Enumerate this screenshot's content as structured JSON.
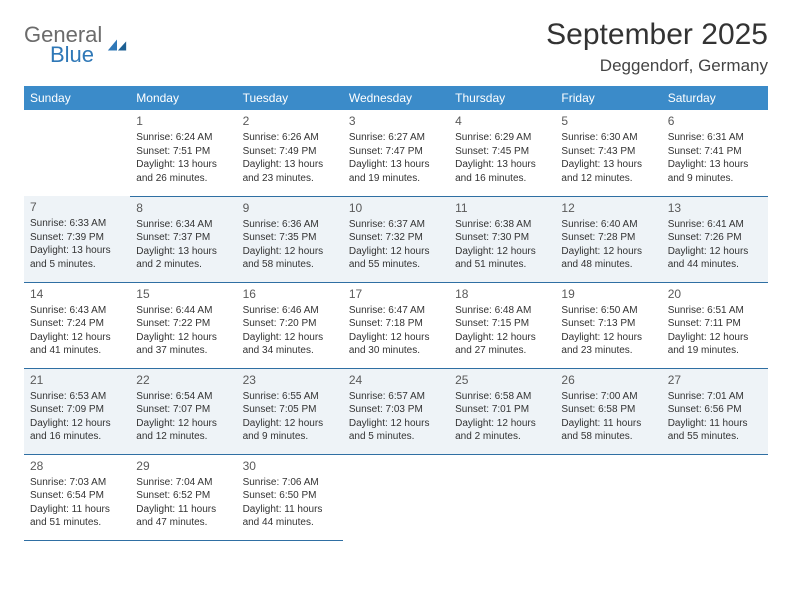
{
  "brand": {
    "text1": "General",
    "text2": "Blue",
    "color1": "#6b6b6b",
    "color2": "#2f78b7"
  },
  "title": "September 2025",
  "location": "Deggendorf, Germany",
  "colors": {
    "header_bg": "#3b8bc9",
    "header_fg": "#ffffff",
    "row_alt_bg": "#eef3f7",
    "row_border": "#2f6fa3",
    "text": "#333333"
  },
  "fonts": {
    "title_size": 30,
    "location_size": 17,
    "dayhead_size": 12,
    "body_size": 10
  },
  "weekdays": [
    "Sunday",
    "Monday",
    "Tuesday",
    "Wednesday",
    "Thursday",
    "Friday",
    "Saturday"
  ],
  "layout": {
    "columns": 7,
    "leading_blanks": 1
  },
  "days": [
    {
      "n": "1",
      "sunrise": "6:24 AM",
      "sunset": "7:51 PM",
      "daylight": "13 hours and 26 minutes."
    },
    {
      "n": "2",
      "sunrise": "6:26 AM",
      "sunset": "7:49 PM",
      "daylight": "13 hours and 23 minutes."
    },
    {
      "n": "3",
      "sunrise": "6:27 AM",
      "sunset": "7:47 PM",
      "daylight": "13 hours and 19 minutes."
    },
    {
      "n": "4",
      "sunrise": "6:29 AM",
      "sunset": "7:45 PM",
      "daylight": "13 hours and 16 minutes."
    },
    {
      "n": "5",
      "sunrise": "6:30 AM",
      "sunset": "7:43 PM",
      "daylight": "13 hours and 12 minutes."
    },
    {
      "n": "6",
      "sunrise": "6:31 AM",
      "sunset": "7:41 PM",
      "daylight": "13 hours and 9 minutes."
    },
    {
      "n": "7",
      "sunrise": "6:33 AM",
      "sunset": "7:39 PM",
      "daylight": "13 hours and 5 minutes."
    },
    {
      "n": "8",
      "sunrise": "6:34 AM",
      "sunset": "7:37 PM",
      "daylight": "13 hours and 2 minutes."
    },
    {
      "n": "9",
      "sunrise": "6:36 AM",
      "sunset": "7:35 PM",
      "daylight": "12 hours and 58 minutes."
    },
    {
      "n": "10",
      "sunrise": "6:37 AM",
      "sunset": "7:32 PM",
      "daylight": "12 hours and 55 minutes."
    },
    {
      "n": "11",
      "sunrise": "6:38 AM",
      "sunset": "7:30 PM",
      "daylight": "12 hours and 51 minutes."
    },
    {
      "n": "12",
      "sunrise": "6:40 AM",
      "sunset": "7:28 PM",
      "daylight": "12 hours and 48 minutes."
    },
    {
      "n": "13",
      "sunrise": "6:41 AM",
      "sunset": "7:26 PM",
      "daylight": "12 hours and 44 minutes."
    },
    {
      "n": "14",
      "sunrise": "6:43 AM",
      "sunset": "7:24 PM",
      "daylight": "12 hours and 41 minutes."
    },
    {
      "n": "15",
      "sunrise": "6:44 AM",
      "sunset": "7:22 PM",
      "daylight": "12 hours and 37 minutes."
    },
    {
      "n": "16",
      "sunrise": "6:46 AM",
      "sunset": "7:20 PM",
      "daylight": "12 hours and 34 minutes."
    },
    {
      "n": "17",
      "sunrise": "6:47 AM",
      "sunset": "7:18 PM",
      "daylight": "12 hours and 30 minutes."
    },
    {
      "n": "18",
      "sunrise": "6:48 AM",
      "sunset": "7:15 PM",
      "daylight": "12 hours and 27 minutes."
    },
    {
      "n": "19",
      "sunrise": "6:50 AM",
      "sunset": "7:13 PM",
      "daylight": "12 hours and 23 minutes."
    },
    {
      "n": "20",
      "sunrise": "6:51 AM",
      "sunset": "7:11 PM",
      "daylight": "12 hours and 19 minutes."
    },
    {
      "n": "21",
      "sunrise": "6:53 AM",
      "sunset": "7:09 PM",
      "daylight": "12 hours and 16 minutes."
    },
    {
      "n": "22",
      "sunrise": "6:54 AM",
      "sunset": "7:07 PM",
      "daylight": "12 hours and 12 minutes."
    },
    {
      "n": "23",
      "sunrise": "6:55 AM",
      "sunset": "7:05 PM",
      "daylight": "12 hours and 9 minutes."
    },
    {
      "n": "24",
      "sunrise": "6:57 AM",
      "sunset": "7:03 PM",
      "daylight": "12 hours and 5 minutes."
    },
    {
      "n": "25",
      "sunrise": "6:58 AM",
      "sunset": "7:01 PM",
      "daylight": "12 hours and 2 minutes."
    },
    {
      "n": "26",
      "sunrise": "7:00 AM",
      "sunset": "6:58 PM",
      "daylight": "11 hours and 58 minutes."
    },
    {
      "n": "27",
      "sunrise": "7:01 AM",
      "sunset": "6:56 PM",
      "daylight": "11 hours and 55 minutes."
    },
    {
      "n": "28",
      "sunrise": "7:03 AM",
      "sunset": "6:54 PM",
      "daylight": "11 hours and 51 minutes."
    },
    {
      "n": "29",
      "sunrise": "7:04 AM",
      "sunset": "6:52 PM",
      "daylight": "11 hours and 47 minutes."
    },
    {
      "n": "30",
      "sunrise": "7:06 AM",
      "sunset": "6:50 PM",
      "daylight": "11 hours and 44 minutes."
    }
  ],
  "labels": {
    "sunrise": "Sunrise:",
    "sunset": "Sunset:",
    "daylight": "Daylight:"
  }
}
